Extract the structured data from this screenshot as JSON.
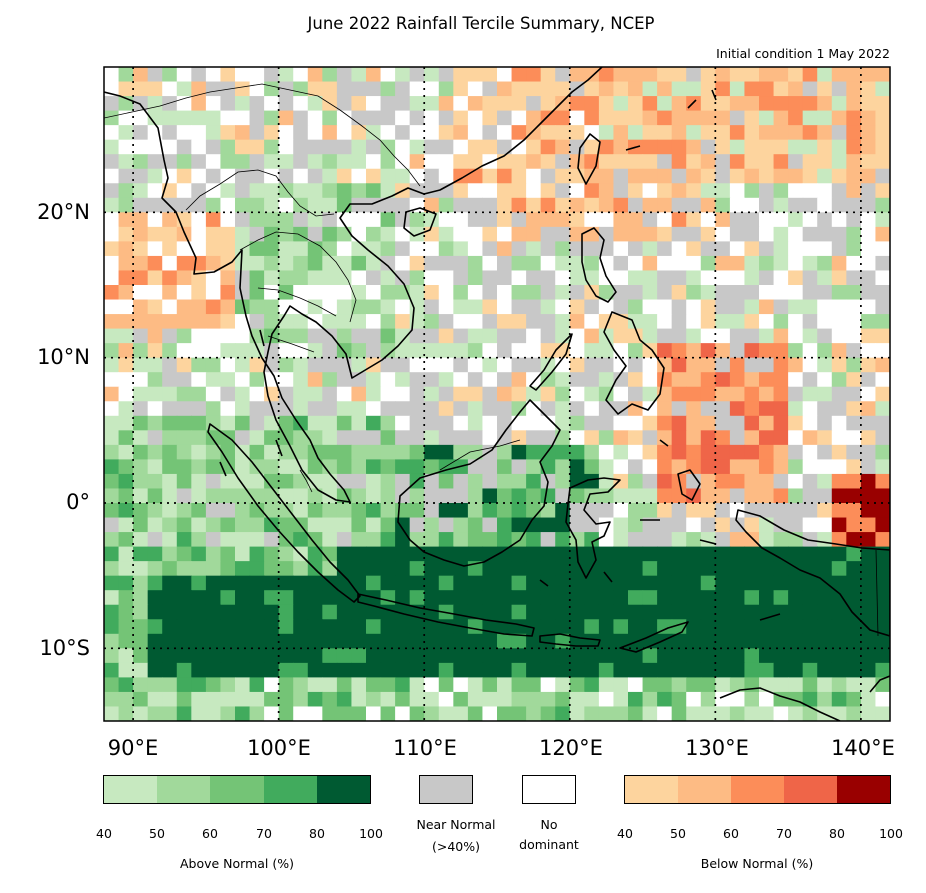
{
  "title": "June 2022 Rainfall Tercile Summary, NCEP",
  "subtitle": "Initial condition 1 May 2022",
  "map": {
    "lon_range": [
      88,
      142
    ],
    "lat_range": [
      -15,
      30
    ],
    "lat_labels": [
      "20°N",
      "10°N",
      "0°",
      "10°S"
    ],
    "lon_labels": [
      "90°E",
      "100°E",
      "110°E",
      "120°E",
      "130°E",
      "140°E"
    ]
  },
  "legend": {
    "above_normal": {
      "title": "Above Normal (%)",
      "ticks": [
        "40",
        "50",
        "60",
        "70",
        "80",
        "100"
      ],
      "colors": [
        "#c7e9c0",
        "#a1d99b",
        "#74c476",
        "#41ab5d",
        "#005a32"
      ]
    },
    "near_normal": {
      "line1": "Near Normal",
      "line2": "(>40%)",
      "color": "#c8c8c8"
    },
    "no_dominant": {
      "line1": "No",
      "line2": "dominant",
      "color": "#ffffff"
    },
    "below_normal": {
      "title": "Below Normal (%)",
      "ticks": [
        "40",
        "50",
        "60",
        "70",
        "80",
        "100"
      ],
      "colors": [
        "#fdd49e",
        "#fdbb84",
        "#fc8d59",
        "#ef6548",
        "#990000"
      ]
    }
  }
}
